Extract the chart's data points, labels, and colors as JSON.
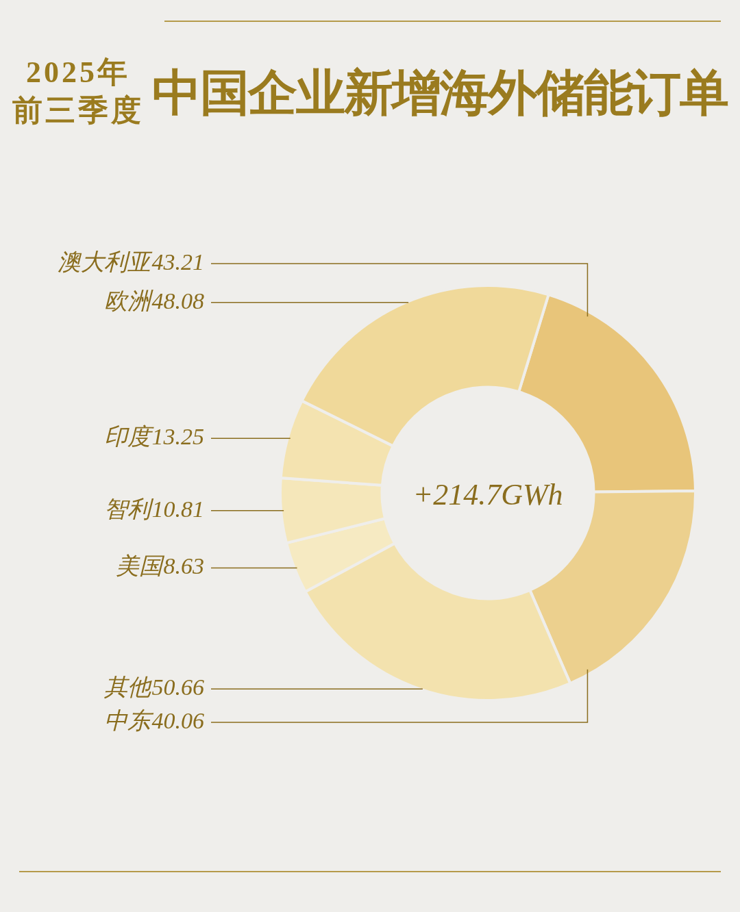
{
  "chart_data": {
    "type": "donut",
    "title": "中国企业新增海外储能订单",
    "subtitle": "2025年前三季度",
    "categories": [
      "澳大利亚",
      "中东",
      "其他",
      "美国",
      "智利",
      "印度",
      "欧洲"
    ],
    "values": [
      43.21,
      40.06,
      50.66,
      8.63,
      10.81,
      13.25,
      48.08
    ],
    "colors": [
      "#e8c57a",
      "#ecd08e",
      "#f3e2ae",
      "#f6eac2",
      "#f5e7ba",
      "#f4e3b0",
      "#f0d99a"
    ],
    "data_labels": true,
    "annotations": [
      "+214.7GWh"
    ],
    "legend": false
  }
}
